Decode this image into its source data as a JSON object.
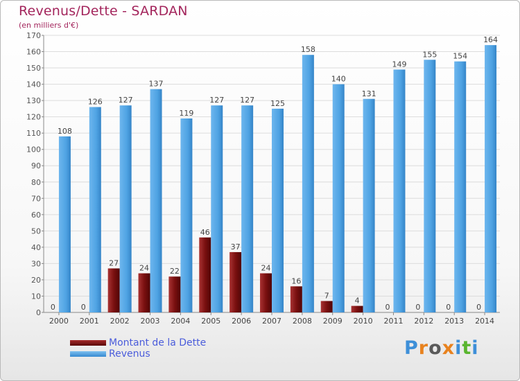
{
  "header": {
    "title": "Revenus/Dette - SARDAN",
    "subtitle": "(en milliers d'€)"
  },
  "legend": {
    "items": [
      {
        "label": "Montant de la Dette",
        "color": "#7a0f0f"
      },
      {
        "label": "Revenus",
        "color": "#4fa3e3"
      }
    ]
  },
  "logo": {
    "text": "Proxiti",
    "colors": [
      "#3d8fd8",
      "#e8821e",
      "#5a5a5a",
      "#e8821e",
      "#3d8fd8",
      "#5ab52f",
      "#3d8fd8"
    ]
  },
  "chart_data": {
    "type": "bar",
    "title": "Revenus/Dette - SARDAN",
    "subtitle": "(en milliers d'€)",
    "categories": [
      "2000",
      "2001",
      "2002",
      "2003",
      "2004",
      "2005",
      "2006",
      "2007",
      "2008",
      "2009",
      "2010",
      "2011",
      "2012",
      "2013",
      "2014"
    ],
    "series": [
      {
        "name": "Montant de la Dette",
        "color": "#7a0f0f",
        "values": [
          0,
          0,
          27,
          24,
          22,
          46,
          37,
          24,
          16,
          7,
          4,
          0,
          0,
          0,
          0
        ]
      },
      {
        "name": "Revenus",
        "color": "#4fa3e3",
        "values": [
          108,
          126,
          127,
          137,
          119,
          127,
          127,
          125,
          158,
          140,
          131,
          149,
          155,
          154,
          164
        ]
      }
    ],
    "ylim": [
      0,
      170
    ],
    "yticks": [
      0,
      10,
      20,
      30,
      40,
      50,
      60,
      70,
      80,
      90,
      100,
      110,
      120,
      130,
      140,
      150,
      160,
      170
    ],
    "grid": true,
    "legend_position": "bottom-left"
  }
}
